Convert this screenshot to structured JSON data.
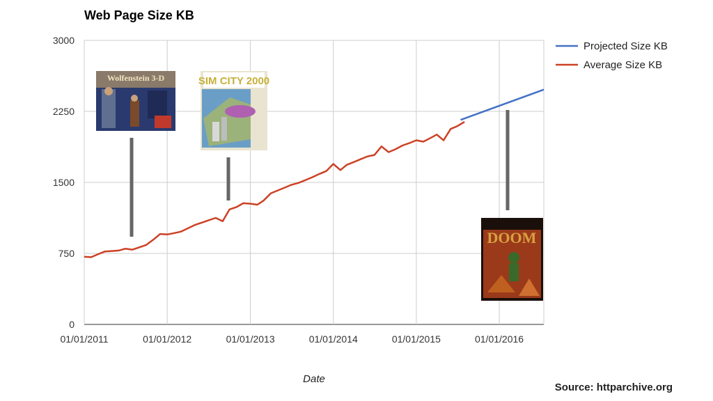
{
  "chart_data": {
    "type": "line",
    "title": "Web Page Size KB",
    "xlabel": "Date",
    "ylabel": "",
    "ylim": [
      0,
      3000
    ],
    "yticks": [
      0,
      750,
      1500,
      2250,
      3000
    ],
    "xlim": [
      "2011-01-01",
      "2016-07-15"
    ],
    "xticks": [
      "01/01/2011",
      "01/01/2012",
      "01/01/2013",
      "01/01/2014",
      "01/01/2015",
      "01/01/2016"
    ],
    "grid": true,
    "legend_position": "right",
    "source": "Source: httparchive.org",
    "series": [
      {
        "name": "Projected Size KB",
        "color": "#4472c4",
        "points": [
          [
            "2015-07-15",
            2160
          ],
          [
            "2016-07-15",
            2480
          ]
        ]
      },
      {
        "name": "Average Size KB",
        "color": "#cc4125",
        "points": [
          [
            "2011-01-01",
            715
          ],
          [
            "2011-02-01",
            710
          ],
          [
            "2011-03-01",
            740
          ],
          [
            "2011-04-01",
            770
          ],
          [
            "2011-05-01",
            775
          ],
          [
            "2011-06-01",
            780
          ],
          [
            "2011-07-01",
            800
          ],
          [
            "2011-08-01",
            790
          ],
          [
            "2011-09-01",
            815
          ],
          [
            "2011-10-01",
            840
          ],
          [
            "2011-11-01",
            895
          ],
          [
            "2011-12-01",
            955
          ],
          [
            "2012-01-01",
            950
          ],
          [
            "2012-02-01",
            965
          ],
          [
            "2012-03-01",
            980
          ],
          [
            "2012-04-01",
            1015
          ],
          [
            "2012-05-01",
            1050
          ],
          [
            "2012-06-01",
            1075
          ],
          [
            "2012-07-01",
            1100
          ],
          [
            "2012-08-01",
            1125
          ],
          [
            "2012-09-01",
            1090
          ],
          [
            "2012-10-01",
            1215
          ],
          [
            "2012-11-01",
            1240
          ],
          [
            "2012-12-01",
            1280
          ],
          [
            "2013-01-01",
            1275
          ],
          [
            "2013-02-01",
            1265
          ],
          [
            "2013-03-01",
            1310
          ],
          [
            "2013-04-01",
            1385
          ],
          [
            "2013-05-01",
            1415
          ],
          [
            "2013-06-01",
            1445
          ],
          [
            "2013-07-01",
            1475
          ],
          [
            "2013-08-01",
            1495
          ],
          [
            "2013-09-01",
            1525
          ],
          [
            "2013-10-01",
            1555
          ],
          [
            "2013-11-01",
            1590
          ],
          [
            "2013-12-01",
            1620
          ],
          [
            "2014-01-01",
            1695
          ],
          [
            "2014-02-01",
            1630
          ],
          [
            "2014-03-01",
            1685
          ],
          [
            "2014-04-01",
            1715
          ],
          [
            "2014-05-01",
            1745
          ],
          [
            "2014-06-01",
            1775
          ],
          [
            "2014-07-01",
            1790
          ],
          [
            "2014-08-01",
            1880
          ],
          [
            "2014-09-01",
            1820
          ],
          [
            "2014-10-01",
            1850
          ],
          [
            "2014-11-01",
            1890
          ],
          [
            "2014-12-01",
            1915
          ],
          [
            "2015-01-01",
            1945
          ],
          [
            "2015-02-01",
            1930
          ],
          [
            "2015-03-01",
            1965
          ],
          [
            "2015-04-01",
            2005
          ],
          [
            "2015-05-01",
            1945
          ],
          [
            "2015-06-01",
            2065
          ],
          [
            "2015-07-01",
            2095
          ],
          [
            "2015-08-01",
            2140
          ]
        ]
      }
    ],
    "annotations": [
      {
        "name": "wolfenstein-3d-image",
        "title_text": "Wolfenstein 3-D",
        "date": "2011-07-01",
        "size_kb": 2100
      },
      {
        "name": "simcity-2000-image",
        "title_text": "SIM CITY 2000",
        "date": "2012-10-01",
        "size_kb": 1800
      },
      {
        "name": "doom-image",
        "title_text": "DOOM",
        "date": "2016-02-15",
        "size_kb": 2250
      }
    ]
  }
}
